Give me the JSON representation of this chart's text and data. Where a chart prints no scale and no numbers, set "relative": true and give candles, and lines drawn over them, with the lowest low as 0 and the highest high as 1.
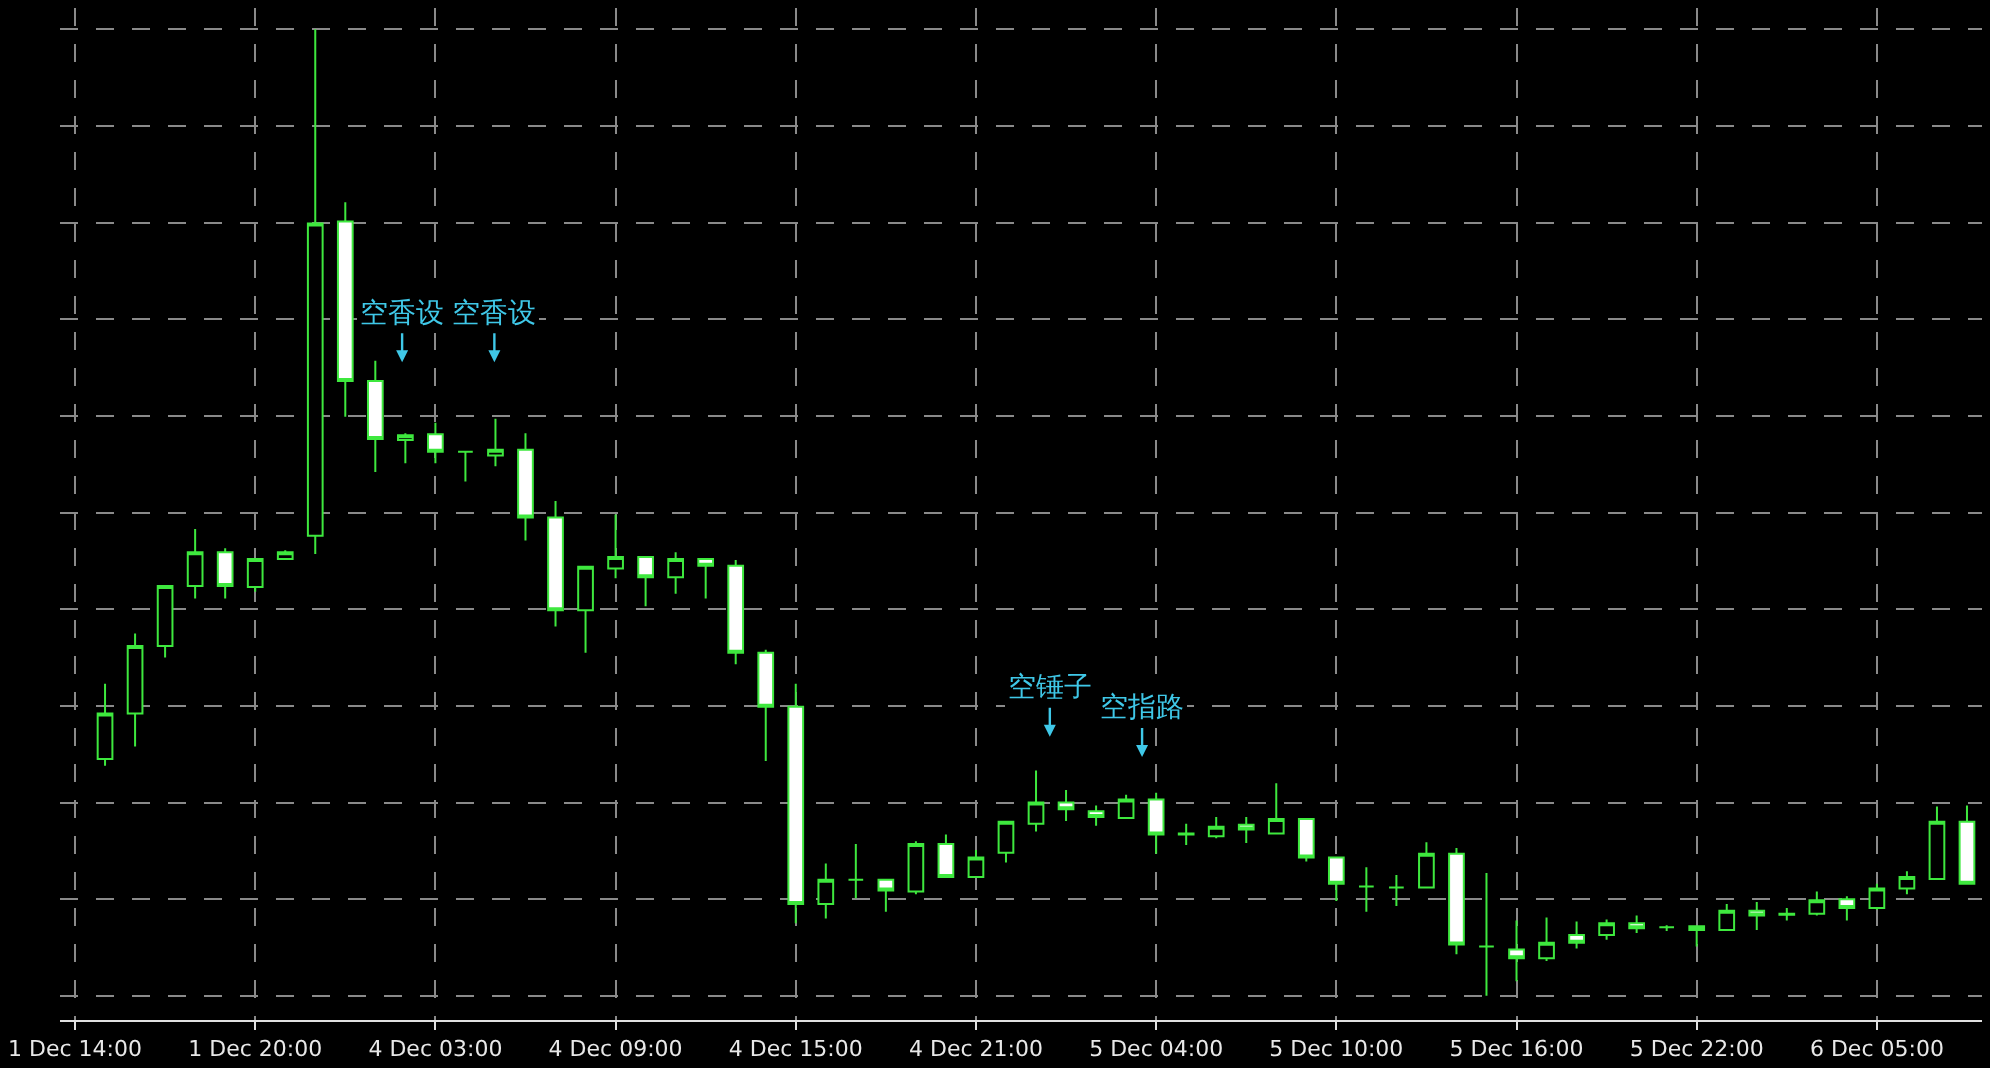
{
  "chart_data": {
    "type": "candlestick",
    "relative": true,
    "color": "#3ee83e",
    "grid": true,
    "categories": [
      "1 Dec 14:00",
      null,
      null,
      null,
      null,
      null,
      "1 Dec 20:00",
      null,
      null,
      null,
      null,
      null,
      "4 Dec 03:00",
      null,
      null,
      null,
      null,
      null,
      "4 Dec 09:00",
      null,
      null,
      null,
      null,
      null,
      "4 Dec 15:00",
      null,
      null,
      null,
      null,
      null,
      "4 Dec 21:00",
      null,
      null,
      null,
      null,
      null,
      "5 Dec 04:00",
      null,
      null,
      null,
      null,
      null,
      "5 Dec 10:00",
      null,
      null,
      null,
      null,
      null,
      "5 Dec 16:00",
      null,
      null,
      null,
      null,
      null,
      "5 Dec 22:00",
      null,
      null,
      null,
      null,
      null,
      "6 Dec 05:00",
      null,
      null,
      null
    ],
    "ohlc": [
      null,
      [
        0.245,
        0.323,
        0.238,
        0.292
      ],
      [
        0.292,
        0.375,
        0.258,
        0.362
      ],
      [
        0.362,
        0.425,
        0.35,
        0.424
      ],
      [
        0.424,
        0.483,
        0.411,
        0.459
      ],
      [
        0.459,
        0.463,
        0.411,
        0.424
      ],
      [
        0.423,
        0.453,
        0.418,
        0.452
      ],
      [
        0.452,
        0.461,
        0.451,
        0.459
      ],
      [
        0.476,
        1,
        0.457,
        0.799
      ],
      [
        0.801,
        0.821,
        0.599,
        0.636
      ],
      [
        0.636,
        0.657,
        0.542,
        0.576
      ],
      [
        0.575,
        0.582,
        0.551,
        0.58
      ],
      [
        0.581,
        0.593,
        0.551,
        0.563
      ],
      [
        0.563,
        0.563,
        0.532,
        0.563
      ],
      [
        0.559,
        0.597,
        0.548,
        0.565
      ],
      [
        0.565,
        0.582,
        0.471,
        0.495
      ],
      [
        0.495,
        0.512,
        0.382,
        0.399
      ],
      [
        0.399,
        0.445,
        0.355,
        0.444
      ],
      [
        0.442,
        0.498,
        0.432,
        0.454
      ],
      [
        0.454,
        0.454,
        0.403,
        0.433
      ],
      [
        0.433,
        0.459,
        0.416,
        0.452
      ],
      [
        0.452,
        0.452,
        0.411,
        0.445
      ],
      [
        0.445,
        0.451,
        0.343,
        0.355
      ],
      [
        0.355,
        0.358,
        0.243,
        0.299
      ],
      [
        0.299,
        0.323,
        0.075,
        0.095
      ],
      [
        0.095,
        0.137,
        0.08,
        0.12
      ],
      [
        0.12,
        0.157,
        0.101,
        0.12
      ],
      [
        0.12,
        0.12,
        0.087,
        0.109
      ],
      [
        0.108,
        0.16,
        0.105,
        0.157
      ],
      [
        0.157,
        0.167,
        0.123,
        0.123
      ],
      [
        0.123,
        0.151,
        0.123,
        0.143
      ],
      [
        0.148,
        0.18,
        0.138,
        0.18
      ],
      [
        0.178,
        0.233,
        0.17,
        0.2
      ],
      [
        0.2,
        0.213,
        0.181,
        0.193
      ],
      [
        0.191,
        0.197,
        0.176,
        0.185
      ],
      [
        0.184,
        0.208,
        0.183,
        0.203
      ],
      [
        0.203,
        0.21,
        0.147,
        0.167
      ],
      [
        0.167,
        0.178,
        0.156,
        0.168
      ],
      [
        0.165,
        0.185,
        0.163,
        0.175
      ],
      [
        0.177,
        0.185,
        0.158,
        0.172
      ],
      [
        0.168,
        0.22,
        0.168,
        0.183
      ],
      [
        0.183,
        0.183,
        0.139,
        0.143
      ],
      [
        0.143,
        0.143,
        0.098,
        0.116
      ],
      [
        0.113,
        0.133,
        0.087,
        0.113
      ],
      [
        0.112,
        0.125,
        0.093,
        0.112
      ],
      [
        0.112,
        0.159,
        0.112,
        0.147
      ],
      [
        0.147,
        0.153,
        0.043,
        0.053
      ],
      [
        0.051,
        0.127,
        0,
        0.051
      ],
      [
        0.048,
        0.078,
        0.015,
        0.039
      ],
      [
        0.039,
        0.081,
        0.036,
        0.055
      ],
      [
        0.063,
        0.077,
        0.049,
        0.055
      ],
      [
        0.063,
        0.079,
        0.058,
        0.075
      ],
      [
        0.075,
        0.083,
        0.065,
        0.07
      ],
      [
        0.071,
        0.073,
        0.067,
        0.071
      ],
      [
        0.072,
        0.072,
        0.051,
        0.068
      ],
      [
        0.068,
        0.095,
        0.067,
        0.088
      ],
      [
        0.088,
        0.097,
        0.068,
        0.083
      ],
      [
        0.084,
        0.091,
        0.078,
        0.085
      ],
      [
        0.085,
        0.108,
        0.083,
        0.099
      ],
      [
        0.1,
        0.103,
        0.078,
        0.091
      ],
      [
        0.091,
        0.116,
        0.089,
        0.111
      ],
      [
        0.111,
        0.129,
        0.105,
        0.123
      ],
      [
        0.121,
        0.196,
        0.121,
        0.18
      ],
      [
        0.18,
        0.197,
        0.116,
        0.116
      ]
    ],
    "annotations": [
      "空香设",
      "空香设",
      "空锤子",
      "空指路"
    ]
  }
}
